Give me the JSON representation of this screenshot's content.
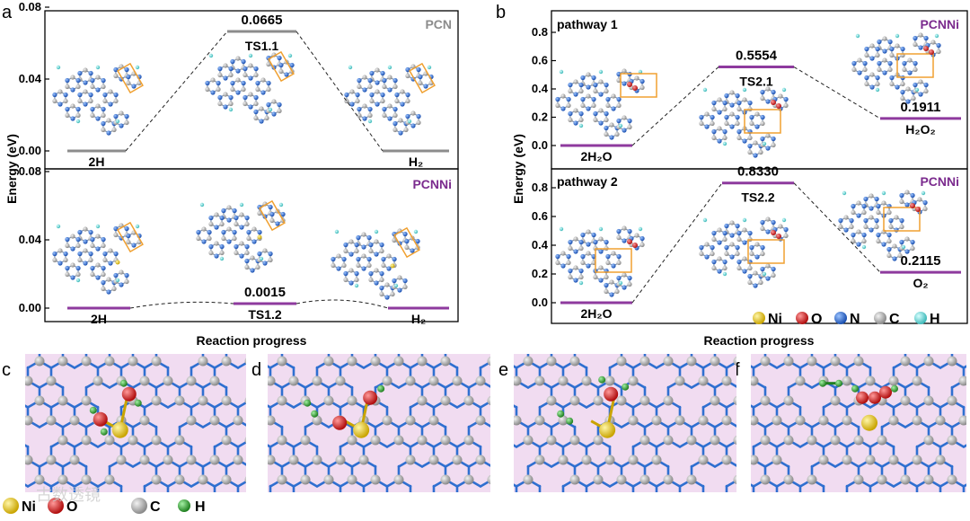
{
  "panel_letters": [
    "a",
    "b",
    "c",
    "d",
    "e",
    "f"
  ],
  "colors": {
    "gray_level": "#8c8c8c",
    "purple_level": "#8e3a9e",
    "box_orange": "#f0a030",
    "ni": "#e3c21a",
    "o": "#d32222",
    "n": "#2f6fd0",
    "c": "#a8a8a8",
    "h_green": "#34a534",
    "h_cyan": "#66d5d5",
    "pink_bg": "#f1dcf1"
  },
  "chart_data": [
    {
      "type": "line",
      "panel": "a-top",
      "ylabel": "Energy (eV)",
      "yticks": [
        "0.00",
        "0.04",
        "0.08"
      ],
      "ylim": [
        0,
        0.08
      ],
      "tag": "PCN",
      "states": [
        {
          "label": "2H",
          "value": 0.0,
          "value_text": ""
        },
        {
          "label": "TS1.1",
          "value": 0.0665,
          "value_text": "0.0665"
        },
        {
          "label": "H₂",
          "value": 0.0,
          "value_text": ""
        }
      ]
    },
    {
      "type": "line",
      "panel": "a-bottom",
      "xlabel": "Reaction progress",
      "yticks": [
        "0.00",
        "0.04",
        "0.08"
      ],
      "ylim": [
        0,
        0.08
      ],
      "tag": "PCNNi",
      "states": [
        {
          "label": "2H",
          "value": 0.0,
          "value_text": ""
        },
        {
          "label": "TS1.2",
          "value": 0.0015,
          "value_text": "0.0015"
        },
        {
          "label": "H₂",
          "value": 0.0,
          "value_text": ""
        }
      ]
    },
    {
      "type": "line",
      "panel": "b-top",
      "ylabel": "Energy (eV)",
      "yticks": [
        "0.0",
        "0.2",
        "0.4",
        "0.6",
        "0.8"
      ],
      "ylim": [
        0,
        0.8
      ],
      "tag": "PCNNi",
      "pathway": "pathway 1",
      "states": [
        {
          "label": "2H₂O",
          "value": 0.0,
          "value_text": ""
        },
        {
          "label": "TS2.1",
          "value": 0.5554,
          "value_text": "0.5554"
        },
        {
          "label": "H₂O₂",
          "value": 0.1911,
          "value_text": "0.1911"
        }
      ]
    },
    {
      "type": "line",
      "panel": "b-bottom",
      "xlabel": "Reaction progress",
      "yticks": [
        "0.0",
        "0.2",
        "0.4",
        "0.6",
        "0.8"
      ],
      "ylim": [
        0,
        0.8
      ],
      "tag": "PCNNi",
      "pathway": "pathway 2",
      "states": [
        {
          "label": "2H₂O",
          "value": 0.0,
          "value_text": ""
        },
        {
          "label": "TS2.2",
          "value": 0.833,
          "value_text": "0.8330"
        },
        {
          "label": "O₂",
          "value": 0.2115,
          "value_text": "0.2115"
        }
      ]
    }
  ],
  "legend_b": [
    {
      "symbol": "Ni",
      "color": "#e3c21a"
    },
    {
      "symbol": "O",
      "color": "#d32222"
    },
    {
      "symbol": "N",
      "color": "#2f6fd0"
    },
    {
      "symbol": "C",
      "color": "#a8a8a8"
    },
    {
      "symbol": "H",
      "color": "#66d5d5"
    }
  ],
  "legend_bottom": [
    {
      "symbol": "Ni",
      "color": "#e3c21a"
    },
    {
      "symbol": "O",
      "color": "#d32222"
    },
    {
      "symbol": "C",
      "color": "#a8a8a8"
    },
    {
      "symbol": "H",
      "color": "#34a534"
    }
  ],
  "watermark": "古数透镜"
}
